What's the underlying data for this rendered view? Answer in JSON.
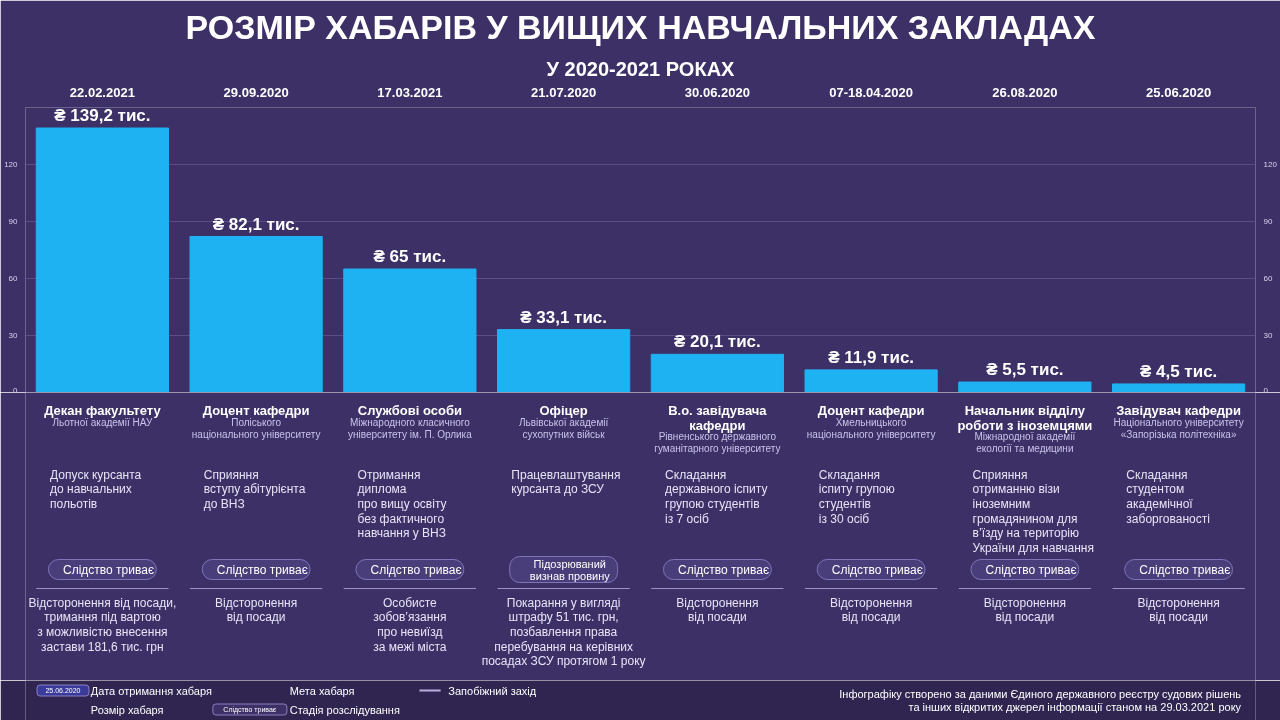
{
  "chart_data": {
    "type": "bar",
    "title": "РОЗМІР ХАБАРІВ У ВИЩИХ НАВЧАЛЬНИХ ЗАКЛАДАХ",
    "subtitle": "У 2020-2021 РОКАХ",
    "categories": [
      "22.02.2021",
      "29.09.2020",
      "17.03.2021",
      "21.07.2020",
      "30.06.2020",
      "07-18.04.2020",
      "26.08.2020",
      "25.06.2020"
    ],
    "values": [
      139.2,
      82.1,
      65,
      33.1,
      20.1,
      11.9,
      5.5,
      4.5
    ],
    "value_labels": [
      "₴ 139,2 тис.",
      "₴ 82,1 тис.",
      "₴ 65 тис.",
      "₴ 33,1 тис.",
      "₴ 20,1 тис.",
      "₴ 11,9 тис.",
      "₴ 5,5 тис.",
      "₴ 4,5 тис."
    ],
    "color": "#1fb2f2",
    "ylim": [
      0,
      150
    ],
    "yticks": [
      0,
      30,
      60,
      90,
      120
    ],
    "y2lim": [
      0,
      150
    ],
    "y2ticks": [
      0,
      30,
      60,
      90,
      120
    ],
    "grid": "y",
    "annotations": [
      "Декан факультету",
      "Льотної академії НАУ",
      "Допуск курсанта\nдо навчальних\nпольотів",
      "Слідство триває",
      "Відсторонення від посади,\nтримання під вартою\nз можливістю внесення\nзастави 181,6 тис. грн",
      "Доцент кафедри",
      "Поліського\nнаціонального університету",
      "Сприяння\nвступу абітурієнта\nдо ВНЗ",
      "Слідство триває",
      "Відсторонення\nвід посади",
      "Службові особи",
      "Міжнародного класичного\nуніверситету ім. П. Орлика",
      "Отримання\nдиплома\nпро вищу освіту\nбез фактичного\nнавчання у ВНЗ",
      "Слідство триває",
      "Особисте\nзобов’язання\nпро невиїзд\nза межі міста",
      "Офіцер",
      "Львівської академії\nсухопутних військ",
      "Працевлаштування\nкурсанта до ЗСУ",
      "Підозрюваний\nвизнав провину",
      "Покарання у вигляді\nштрафу 51 тис. грн,\nпозбавлення права\nперебування на керівних\nпосадах ЗСУ протягом 1 року",
      "В.о. завідувача\nкафедри",
      "Рівненського державного\nгуманітарного університету",
      "Складання\nдержавного іспиту\nгрупою студентів\nіз 7 осіб",
      "Слідство триває",
      "Відсторонення\nвід посади",
      "Доцент кафедри",
      "Хмельницького\nнаціонального університету",
      "Складання\nіспиту групою\nстудентів\nіз 30 осіб",
      "Слідство триває",
      "Відсторонення\nвід посади",
      "Начальник відділу\nроботи з іноземцями",
      "Міжнародної академії\nекології та медицини",
      "Сприяння\nотриманню візи\nіноземним\nгромадянином для\nв’їзду на територію\nУкраїни для навчання",
      "Слідство триває",
      "Відсторонення\nвід посади",
      "Завідувач кафедри",
      "Національного університету\n«Запорізька політехніка»",
      "Складання\nстудентом\nакадемічної\nзаборгованості",
      "Слідство триває",
      "Відсторонення\nвід посади",
      "25.06.2020",
      "Дата отримання хабаря",
      "Розмір хабаря",
      "Мета хабаря",
      "Слідство триває",
      "Стадія розслідування",
      "Запобіжний захід",
      "Інфографіку створено за даними Єдиного державного реєстру судових рішень\nта інших відкритих джерел інформації станом на 29.03.2021 року"
    ]
  }
}
